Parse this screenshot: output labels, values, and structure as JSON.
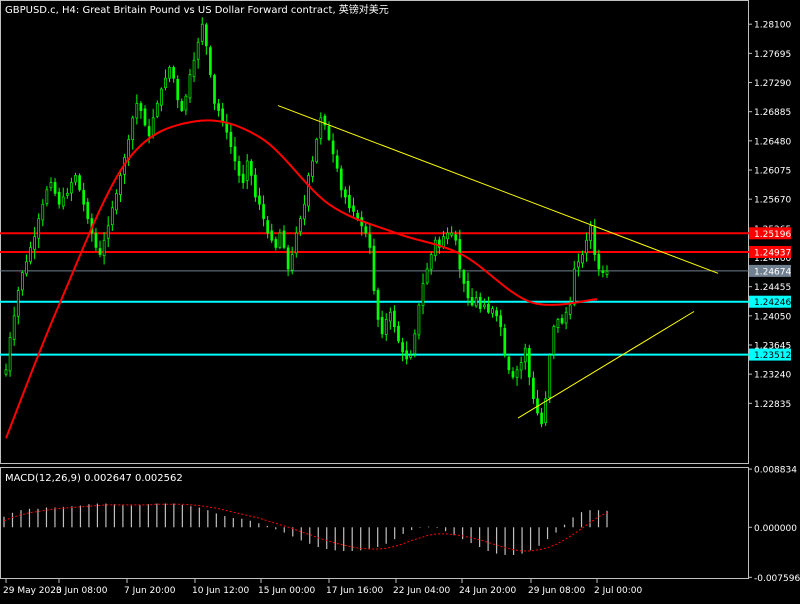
{
  "header": {
    "title": "GBPUSD.c, H4:  Great Britain Pound vs US Dollar Forward contract, 英镑对美元"
  },
  "indicator_title": "MACD(12,26,9) 0.002647 0.002562",
  "colors": {
    "background": "#000000",
    "candle": "#00ff00",
    "ma": "#ff0000",
    "macd_hist": "#c0c0c0",
    "macd_signal": "#ff0000",
    "trendline": "#ffff00",
    "resistance": "#ff0000",
    "support": "#00ffff",
    "bid": "#708090",
    "frame": "#c0c0c0"
  },
  "chart_data": [
    {
      "type": "candlestick",
      "title": "GBPUSD.c, H4:  Great Britain Pound vs US Dollar Forward contract, 英镑对美元",
      "price_axis_ticks": [
        "1.28100",
        "1.27695",
        "1.27290",
        "1.26885",
        "1.26480",
        "1.26075",
        "1.25670",
        "1.25265",
        "1.24860",
        "1.24455",
        "1.24050",
        "1.23645",
        "1.23240",
        "1.22835"
      ],
      "ylim": [
        1.2202,
        1.282
      ],
      "time_axis_labels": [
        "29 May 2020",
        "3 Jun 08:00",
        "7 Jun 20:00",
        "10 Jun 12:00",
        "15 Jun 00:00",
        "17 Jun 16:00",
        "22 Jun 04:00",
        "24 Jun 20:00",
        "29 Jun 08:00",
        "2 Jul 00:00"
      ],
      "close_series": [
        1.233,
        1.2375,
        1.2405,
        1.244,
        1.2465,
        1.248,
        1.25,
        1.2515,
        1.254,
        1.256,
        1.258,
        1.259,
        1.2575,
        1.256,
        1.257,
        1.2575,
        1.259,
        1.26,
        1.258,
        1.256,
        1.254,
        1.252,
        1.25,
        1.249,
        1.251,
        1.253,
        1.2555,
        1.2575,
        1.26,
        1.2625,
        1.265,
        1.268,
        1.27,
        1.269,
        1.267,
        1.2655,
        1.268,
        1.27,
        1.272,
        1.2735,
        1.275,
        1.2735,
        1.2705,
        1.269,
        1.271,
        1.274,
        1.276,
        1.2785,
        1.281,
        1.278,
        1.274,
        1.27,
        1.269,
        1.2675,
        1.266,
        1.264,
        1.262,
        1.26,
        1.259,
        1.262,
        1.26,
        1.257,
        1.256,
        1.254,
        1.252,
        1.251,
        1.25,
        1.252,
        1.25,
        1.247,
        1.249,
        1.252,
        1.254,
        1.256,
        1.26,
        1.262,
        1.265,
        1.268,
        1.267,
        1.265,
        1.263,
        1.261,
        1.258,
        1.257,
        1.2555,
        1.255,
        1.254,
        1.253,
        1.252,
        1.25,
        1.244,
        1.24,
        1.238,
        1.24,
        1.241,
        1.239,
        1.237,
        1.2355,
        1.2345,
        1.235,
        1.238,
        1.242,
        1.245,
        1.247,
        1.249,
        1.251,
        1.25,
        1.2515,
        1.252,
        1.252,
        1.251,
        1.247,
        1.245,
        1.243,
        1.242,
        1.243,
        1.2415,
        1.242,
        1.241,
        1.2415,
        1.2405,
        1.239,
        1.235,
        1.233,
        1.232,
        1.233,
        1.234,
        1.236,
        1.232,
        1.229,
        1.227,
        1.2255,
        1.229,
        1.235,
        1.239,
        1.24,
        1.2395,
        1.241,
        1.242,
        1.247,
        1.248,
        1.249,
        1.251,
        1.253,
        1.249,
        1.247,
        1.2465,
        1.2467
      ],
      "moving_average": [
        {
          "x_date": "29 May 2020",
          "y": 1.2235
        },
        {
          "x_date": "3 Jun 08:00",
          "y": 1.242
        },
        {
          "x_date": "7 Jun 20:00",
          "y": 1.262
        },
        {
          "x_date": "10 Jun 12:00",
          "y": 1.2675
        },
        {
          "x_date": "15 Jun 00:00",
          "y": 1.2652
        },
        {
          "x_date": "17 Jun 16:00",
          "y": 1.256
        },
        {
          "x_date": "22 Jun 04:00",
          "y": 1.252
        },
        {
          "x_date": "24 Jun 20:00",
          "y": 1.249
        },
        {
          "x_date": "29 Jun 08:00",
          "y": 1.2424
        },
        {
          "x_date": "2 Jul 00:00",
          "y": 1.2428
        }
      ],
      "horizontal_levels": [
        {
          "value": 1.25196,
          "label": "1.25196",
          "role": "resistance"
        },
        {
          "value": 1.24937,
          "label": "1.24937",
          "role": "resistance"
        },
        {
          "value": 1.24674,
          "label": "1.24674",
          "role": "bid"
        },
        {
          "value": 1.24246,
          "label": "1.24246",
          "role": "support"
        },
        {
          "value": 1.23512,
          "label": "1.23512",
          "role": "support"
        }
      ],
      "trendlines": [
        {
          "name": "descending",
          "from": {
            "x_date": "15 Jun 00:00",
            "y": 1.2697
          },
          "to": {
            "x_date": "after 2 Jul 00:00",
            "y": 1.2464
          }
        },
        {
          "name": "ascending",
          "from": {
            "x_date": "29 Jun 08:00",
            "y": 1.2263
          },
          "to": {
            "x_date": "after 2 Jul 00:00",
            "y": 1.2411
          }
        }
      ],
      "grid": false
    },
    {
      "type": "macd",
      "title": "MACD(12,26,9) 0.002647 0.002562",
      "axis_ticks": [
        "0.008834",
        "0.000000",
        "-0.007596"
      ],
      "ylim": [
        -0.0077,
        0.009
      ],
      "histogram": [
        0.0016,
        0.0022,
        0.0026,
        0.0028,
        0.0028,
        0.003,
        0.003,
        0.0031,
        0.0032,
        0.0033,
        0.0035,
        0.0036,
        0.0036,
        0.0035,
        0.0034,
        0.0033,
        0.0034,
        0.0035,
        0.0036,
        0.0036,
        0.0036,
        0.0034,
        0.0032,
        0.003,
        0.0026,
        0.0021,
        0.0017,
        0.0014,
        0.0013,
        0.001,
        0.0006,
        0.0002,
        -0.0003,
        -0.0008,
        -0.0014,
        -0.002,
        -0.0025,
        -0.003,
        -0.0033,
        -0.0035,
        -0.0036,
        -0.0036,
        -0.0035,
        -0.0033,
        -0.003,
        -0.0025,
        -0.0018,
        -0.001,
        -0.0004,
        0.0,
        0.0001,
        -0.0001,
        -0.0006,
        -0.0012,
        -0.0018,
        -0.0024,
        -0.003,
        -0.0036,
        -0.004,
        -0.0042,
        -0.0042,
        -0.004,
        -0.0035,
        -0.0028,
        -0.0018,
        -0.0008,
        0.0004,
        0.0015,
        0.0023,
        0.0026,
        0.0026,
        0.0025
      ],
      "signal": [
        0.001,
        0.0015,
        0.0019,
        0.0022,
        0.0024,
        0.0026,
        0.0028,
        0.0029,
        0.003,
        0.0031,
        0.0032,
        0.0033,
        0.0034,
        0.0034,
        0.0034,
        0.0034,
        0.0034,
        0.0034,
        0.0035,
        0.0035,
        0.0035,
        0.0035,
        0.0034,
        0.0033,
        0.0031,
        0.0029,
        0.0026,
        0.0023,
        0.002,
        0.0017,
        0.0014,
        0.001,
        0.0006,
        0.0002,
        -0.0002,
        -0.0007,
        -0.0011,
        -0.0016,
        -0.002,
        -0.0024,
        -0.0027,
        -0.003,
        -0.0032,
        -0.0033,
        -0.0033,
        -0.0032,
        -0.0029,
        -0.0025,
        -0.002,
        -0.0016,
        -0.0012,
        -0.001,
        -0.001,
        -0.0011,
        -0.0013,
        -0.0016,
        -0.0019,
        -0.0023,
        -0.0027,
        -0.0031,
        -0.0034,
        -0.0036,
        -0.0036,
        -0.0034,
        -0.0031,
        -0.0026,
        -0.0019,
        -0.0011,
        -0.0002,
        0.0007,
        0.0016,
        0.0022
      ]
    }
  ]
}
